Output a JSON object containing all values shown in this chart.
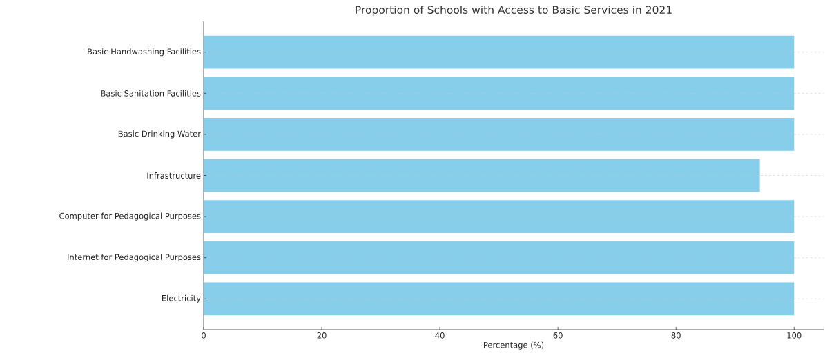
{
  "chart_data": {
    "type": "bar",
    "orientation": "horizontal",
    "title": "Proportion of Schools with Access to Basic Services in 2021",
    "xlabel": "Percentage (%)",
    "categories": [
      "Basic Handwashing Facilities",
      "Basic Sanitation Facilities",
      "Basic Drinking Water",
      "Infrastructure",
      "Computer for Pedagogical Purposes",
      "Internet for Pedagogical Purposes",
      "Electricity"
    ],
    "values": [
      100,
      100,
      100,
      94.2,
      100,
      100,
      100
    ],
    "color": "#87ceeb",
    "xlim": [
      0,
      105
    ],
    "xticks": [
      0,
      20,
      40,
      60,
      80,
      100
    ],
    "grid": "y"
  }
}
